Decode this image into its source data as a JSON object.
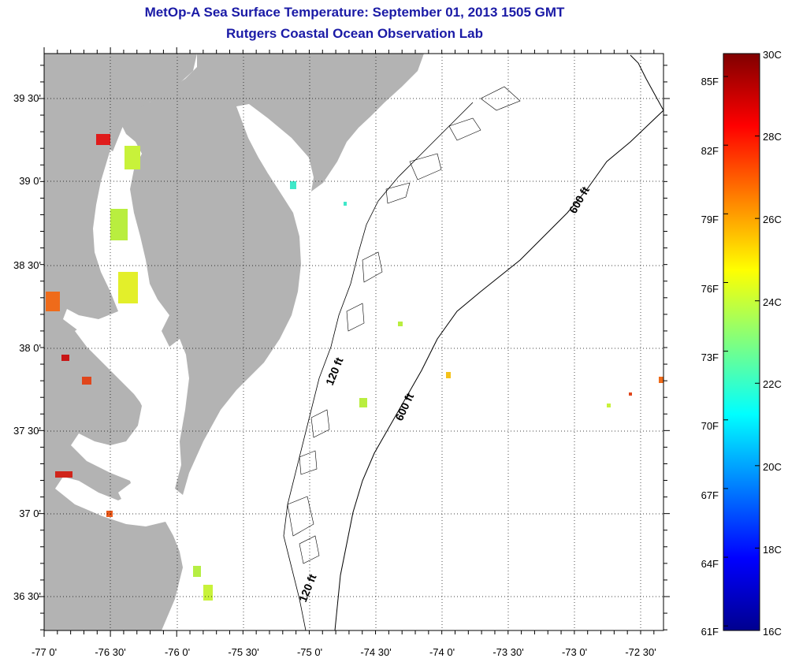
{
  "header": {
    "title_line1": "MetOp-A Sea Surface Temperature:  September 01, 2013 1505 GMT",
    "title_line2": "Rutgers Coastal Ocean Observation Lab"
  },
  "map": {
    "lat_labels": [
      "39 30'",
      "39 0'",
      "38 30'",
      "38 0'",
      "37 30'",
      "37 0'",
      "36 30'"
    ],
    "lon_labels": [
      "-77 0'",
      "-76 30'",
      "-76 0'",
      "-75 30'",
      "-75 0'",
      "-74 30'",
      "-74 0'",
      "-73 30'",
      "-73 0'",
      "-72 30'"
    ],
    "contour_labels": [
      "600 ft",
      "600 ft",
      "120 ft",
      "120 ft"
    ],
    "colors": {
      "land": "#b3b3b3",
      "water": "#ffffff",
      "title": "#1a1aa6"
    }
  },
  "colorbar": {
    "fahrenheit_labels": [
      "85F",
      "82F",
      "79F",
      "76F",
      "73F",
      "70F",
      "67F",
      "64F",
      "61F"
    ],
    "celsius_labels": [
      "30C",
      "28C",
      "26C",
      "24C",
      "22C",
      "20C",
      "18C",
      "16C"
    ],
    "range_c": [
      16,
      30
    ],
    "colormap": "jet"
  }
}
